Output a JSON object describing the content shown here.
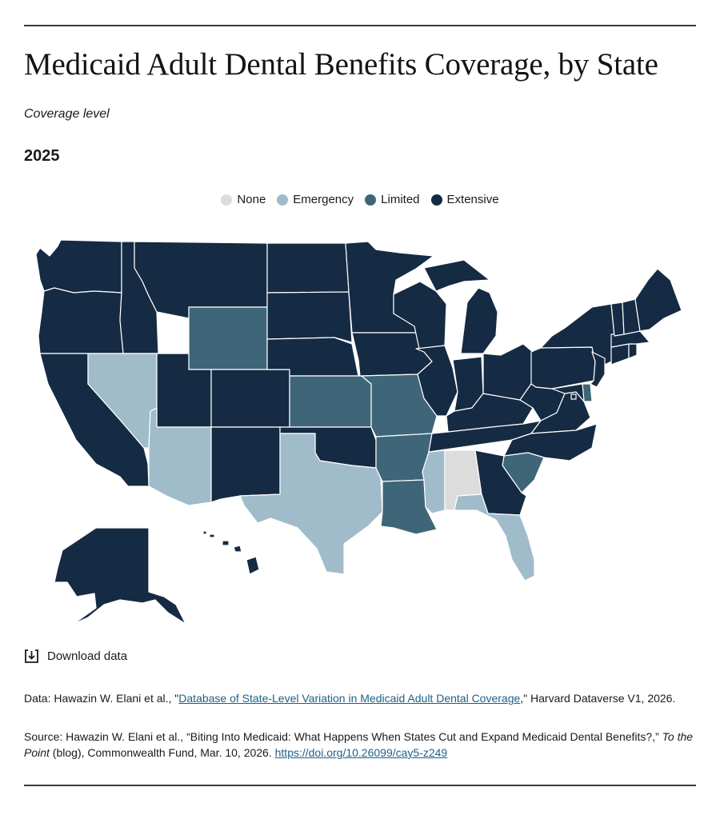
{
  "header": {
    "title": "Medicaid Adult Dental Benefits Coverage, by State",
    "subtitle": "Coverage level",
    "year": "2025"
  },
  "legend": [
    {
      "label": "None",
      "color": "#dcdcdc"
    },
    {
      "label": "Emergency",
      "color": "#a0bccb"
    },
    {
      "label": "Limited",
      "color": "#3e6678"
    },
    {
      "label": "Extensive",
      "color": "#152a43"
    }
  ],
  "map_data": {
    "type": "choropleth",
    "categories": [
      "None",
      "Emergency",
      "Limited",
      "Extensive"
    ],
    "coverage_by_state": {
      "WA": "Extensive",
      "OR": "Extensive",
      "CA": "Extensive",
      "ID": "Extensive",
      "NV": "Emergency",
      "MT": "Extensive",
      "WY": "Limited",
      "UT": "Extensive",
      "AZ": "Emergency",
      "CO": "Extensive",
      "NM": "Extensive",
      "ND": "Extensive",
      "SD": "Extensive",
      "NE": "Extensive",
      "KS": "Limited",
      "OK": "Extensive",
      "TX": "Emergency",
      "MN": "Extensive",
      "IA": "Extensive",
      "MO": "Limited",
      "AR": "Limited",
      "LA": "Limited",
      "WI": "Extensive",
      "IL": "Extensive",
      "MS": "Emergency",
      "AL": "None",
      "MI": "Extensive",
      "IN": "Extensive",
      "KY": "Extensive",
      "TN": "Extensive",
      "OH": "Extensive",
      "WV": "Extensive",
      "VA": "Extensive",
      "NC": "Extensive",
      "SC": "Limited",
      "GA": "Extensive",
      "FL": "Emergency",
      "PA": "Extensive",
      "NY": "Extensive",
      "NJ": "Extensive",
      "DE": "Limited",
      "MD": "Extensive",
      "DC": "Extensive",
      "CT": "Extensive",
      "RI": "Extensive",
      "MA": "Extensive",
      "VT": "Extensive",
      "NH": "Extensive",
      "ME": "Extensive",
      "AK": "Extensive",
      "HI": "Extensive"
    }
  },
  "download": {
    "label": "Download data",
    "icon": "download-icon"
  },
  "data_note": {
    "prefix": "Data: Hawazin W. Elani et al., \"",
    "link_text": "Database of State-Level Variation in Medicaid Adult Dental Coverage",
    "suffix": ",\" Harvard Dataverse V1, 2026."
  },
  "source_note": {
    "prefix": "Source: Hawazin W. Elani et al., “Biting Into Medicaid: What Happens When States Cut and Expand Medicaid Dental Benefits?,” ",
    "italic": "To the Point",
    "middle": " (blog), Commonwealth Fund, Mar. 10, 2026. ",
    "link_text": "https://doi.org/10.26099/cay5-z249"
  }
}
